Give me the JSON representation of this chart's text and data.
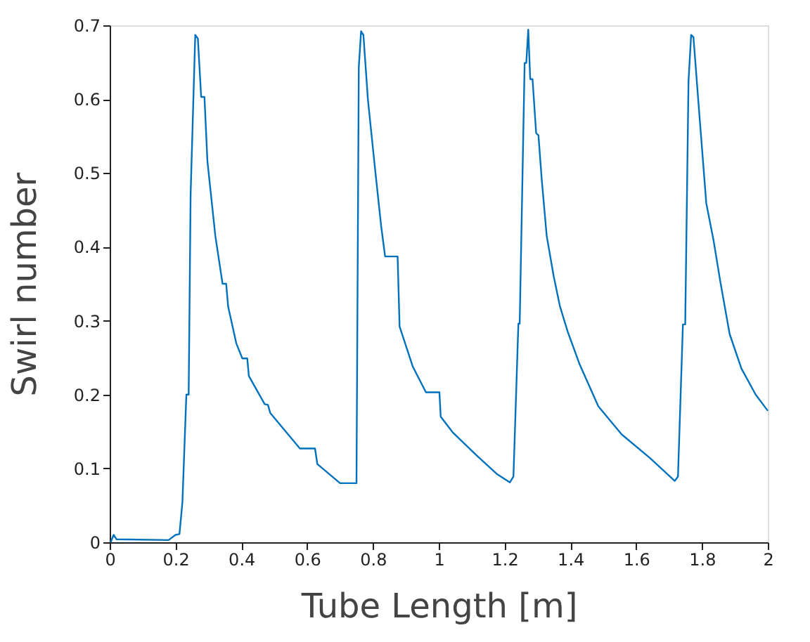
{
  "chart_data": {
    "type": "line",
    "xlabel": "Tube Length [m]",
    "ylabel": "Swirl number",
    "xlim": [
      0,
      2
    ],
    "ylim": [
      0,
      0.7
    ],
    "xticks": [
      0,
      0.2,
      0.4,
      0.6,
      0.8,
      1,
      1.2,
      1.4,
      1.6,
      1.8,
      2
    ],
    "yticks": [
      0,
      0.1,
      0.2,
      0.3,
      0.4,
      0.5,
      0.6,
      0.7
    ],
    "grid": false,
    "marker": "none",
    "line_style": "solid",
    "series": [
      {
        "color": "#0072bd",
        "x": [
          0.003,
          0.012,
          0.021,
          0.179,
          0.2,
          0.212,
          0.221,
          0.233,
          0.24,
          0.246,
          0.26,
          0.268,
          0.278,
          0.288,
          0.297,
          0.321,
          0.343,
          0.354,
          0.36,
          0.385,
          0.403,
          0.418,
          0.423,
          0.471,
          0.481,
          0.488,
          0.578,
          0.624,
          0.631,
          0.7,
          0.75,
          0.757,
          0.764,
          0.771,
          0.785,
          0.807,
          0.825,
          0.837,
          0.875,
          0.881,
          0.921,
          0.961,
          1.002,
          1.006,
          1.042,
          1.114,
          1.178,
          1.216,
          1.227,
          1.242,
          1.246,
          1.261,
          1.266,
          1.272,
          1.278,
          1.285,
          1.296,
          1.303,
          1.313,
          1.328,
          1.349,
          1.368,
          1.392,
          1.428,
          1.485,
          1.556,
          1.642,
          1.717,
          1.727,
          1.742,
          1.749,
          1.759,
          1.767,
          1.774,
          1.792,
          1.813,
          1.835,
          1.856,
          1.884,
          1.92,
          1.963,
          2.0
        ],
        "values": [
          0.0,
          0.01,
          0.004,
          0.003,
          0.01,
          0.011,
          0.054,
          0.2,
          0.2,
          0.472,
          0.687,
          0.682,
          0.603,
          0.603,
          0.516,
          0.415,
          0.35,
          0.35,
          0.319,
          0.269,
          0.249,
          0.249,
          0.225,
          0.187,
          0.186,
          0.175,
          0.127,
          0.127,
          0.106,
          0.08,
          0.08,
          0.643,
          0.692,
          0.687,
          0.598,
          0.503,
          0.428,
          0.387,
          0.387,
          0.292,
          0.238,
          0.203,
          0.203,
          0.17,
          0.149,
          0.118,
          0.092,
          0.081,
          0.089,
          0.296,
          0.296,
          0.649,
          0.649,
          0.694,
          0.627,
          0.627,
          0.554,
          0.551,
          0.491,
          0.415,
          0.361,
          0.32,
          0.285,
          0.241,
          0.184,
          0.146,
          0.114,
          0.083,
          0.089,
          0.295,
          0.295,
          0.624,
          0.687,
          0.684,
          0.579,
          0.459,
          0.409,
          0.352,
          0.282,
          0.235,
          0.2,
          0.178
        ]
      }
    ]
  }
}
